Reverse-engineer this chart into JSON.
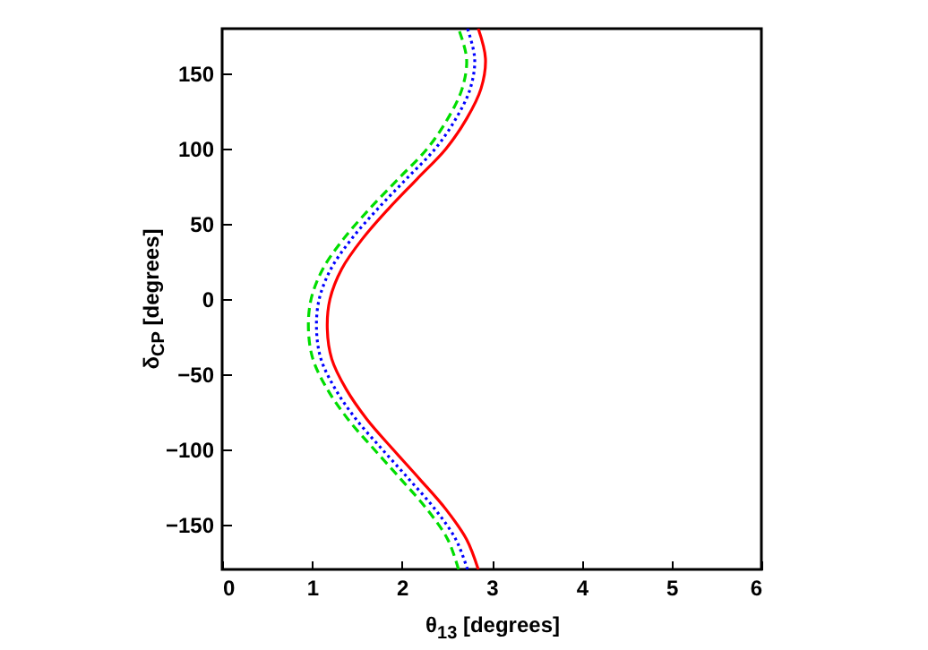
{
  "chart_data": {
    "type": "line",
    "xlabel": "θ$_{13}$ [degrees]",
    "ylabel": "δ$_{CP}$ [degrees]",
    "xlim": [
      0,
      6
    ],
    "xticks": [
      0,
      1,
      2,
      3,
      4,
      5,
      6
    ],
    "ylim": [
      -180,
      180
    ],
    "yticks": [
      -150,
      -100,
      -50,
      0,
      50,
      100,
      150
    ],
    "series": [
      {
        "color": "#ff0000",
        "line_style": "solid",
        "x": [
          2.85,
          2.72,
          2.49,
          2.2,
          1.9,
          1.61,
          1.38,
          1.22,
          1.17,
          1.2,
          1.33,
          1.56,
          1.85,
          2.17,
          2.49,
          2.72,
          2.88,
          2.93,
          2.85
        ],
        "values": [
          -180,
          -160,
          -140,
          -120,
          -100,
          -80,
          -60,
          -40,
          -20,
          0,
          20,
          40,
          60,
          80,
          100,
          120,
          140,
          160,
          180
        ]
      },
      {
        "color": "#0000ff",
        "line_style": "dotted",
        "x": [
          2.73,
          2.6,
          2.37,
          2.08,
          1.78,
          1.49,
          1.26,
          1.1,
          1.05,
          1.08,
          1.21,
          1.44,
          1.73,
          2.05,
          2.37,
          2.6,
          2.76,
          2.81,
          2.73
        ],
        "values": [
          -180,
          -160,
          -140,
          -120,
          -100,
          -80,
          -60,
          -40,
          -20,
          0,
          20,
          40,
          60,
          80,
          100,
          120,
          140,
          160,
          180
        ]
      },
      {
        "color": "#00dd00",
        "line_style": "dashed",
        "x": [
          2.63,
          2.51,
          2.28,
          1.99,
          1.69,
          1.4,
          1.17,
          1.01,
          0.96,
          0.99,
          1.12,
          1.35,
          1.64,
          1.96,
          2.28,
          2.51,
          2.67,
          2.72,
          2.63
        ],
        "values": [
          -180,
          -160,
          -140,
          -120,
          -100,
          -80,
          -60,
          -40,
          -20,
          0,
          20,
          40,
          60,
          80,
          100,
          120,
          140,
          160,
          180
        ]
      }
    ]
  }
}
